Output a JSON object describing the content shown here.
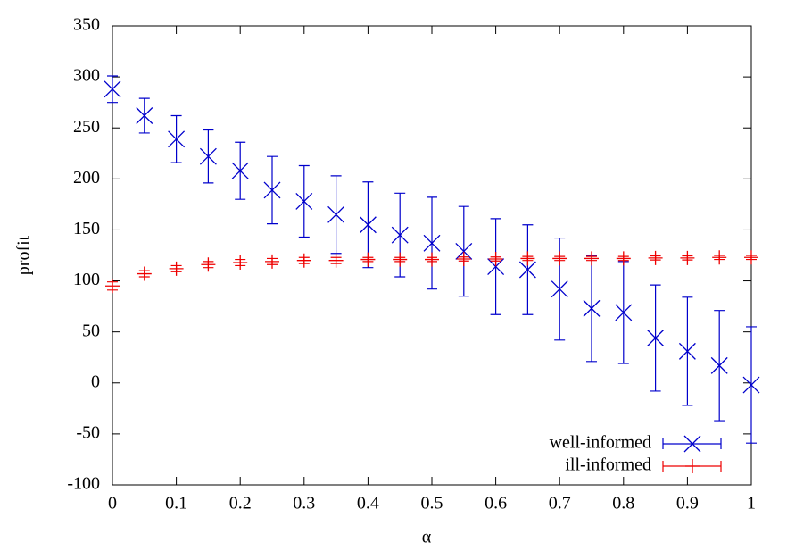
{
  "chart_data": {
    "type": "errorbar",
    "xlabel": "α",
    "ylabel": "profit",
    "x": [
      0,
      0.05,
      0.1,
      0.15,
      0.2,
      0.25,
      0.3,
      0.35,
      0.4,
      0.45,
      0.5,
      0.55,
      0.6,
      0.65,
      0.7,
      0.75,
      0.8,
      0.85,
      0.9,
      0.95,
      1
    ],
    "series": [
      {
        "name": "well-informed",
        "color": "#0000cc",
        "marker": "x",
        "values": [
          288,
          262,
          239,
          222,
          208,
          189,
          178,
          165,
          155,
          145,
          137,
          129,
          114,
          111,
          92,
          73,
          69,
          44,
          31,
          17,
          -2
        ],
        "errors": [
          13,
          17,
          23,
          26,
          28,
          33,
          35,
          38,
          42,
          41,
          45,
          44,
          47,
          44,
          50,
          52,
          50,
          52,
          53,
          54,
          57
        ]
      },
      {
        "name": "ill-informed",
        "color": "#ee0000",
        "marker": "+",
        "values": [
          95,
          107,
          112,
          116,
          118,
          119,
          120,
          120,
          121,
          121,
          121,
          121.5,
          121.5,
          122,
          122,
          122,
          122,
          122.5,
          122.5,
          123,
          123
        ],
        "errors": [
          4,
          3,
          3,
          3,
          3,
          3,
          3,
          3,
          2,
          2,
          2,
          2,
          2,
          2,
          2,
          2,
          2,
          2,
          2,
          2,
          2
        ]
      }
    ],
    "xlim": [
      0,
      1
    ],
    "xticks": [
      0,
      0.1,
      0.2,
      0.3,
      0.4,
      0.5,
      0.6,
      0.7,
      0.8,
      0.9,
      1
    ],
    "ylim": [
      -100,
      350
    ],
    "yticks": [
      -100,
      -50,
      0,
      50,
      100,
      150,
      200,
      250,
      300,
      350
    ],
    "grid": false,
    "legend": "lower right"
  }
}
